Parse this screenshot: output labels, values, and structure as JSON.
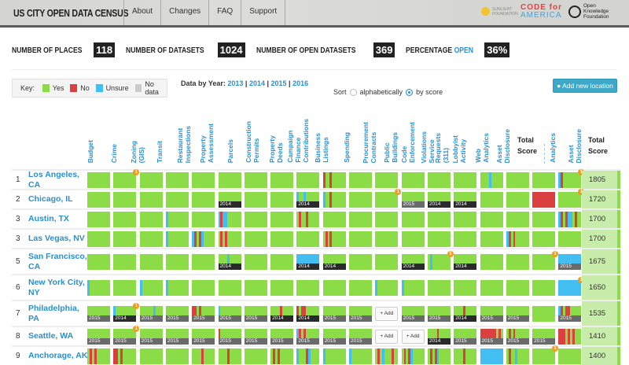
{
  "header": {
    "title": "US CITY OPEN DATA CENSUS",
    "nav": [
      "About",
      "Changes",
      "FAQ",
      "Support"
    ],
    "logos": {
      "sunlight": "SUNLIGHT FOUNDATION",
      "cfa_top": "CODE for",
      "cfa_bottom": "AMERICA",
      "okf": "Open Knowledge Foundation"
    }
  },
  "stats": [
    {
      "label": "NUMBER OF PLACES",
      "value": "118"
    },
    {
      "label": "NUMBER OF DATASETS",
      "value": "1024"
    },
    {
      "label": "NUMBER OF OPEN DATASETS",
      "value": "369"
    },
    {
      "label": "PERCENTAGE",
      "highlight": "OPEN",
      "value": "36%"
    }
  ],
  "key": {
    "label": "Key:",
    "items": [
      {
        "label": "Yes",
        "color": "#8cdc48"
      },
      {
        "label": "No",
        "color": "#d9403f"
      },
      {
        "label": "Unsure",
        "color": "#43bef0"
      },
      {
        "label": "No data",
        "color": "#cccccc"
      }
    ]
  },
  "years": {
    "label": "Data by Year:",
    "items": [
      "2013",
      "2014",
      "2015",
      "2016"
    ]
  },
  "sort": {
    "label": "Sort",
    "options": [
      "alphabetically",
      "by score"
    ],
    "selected": "by score"
  },
  "add_location": "Add new location",
  "columns": [
    "Budget",
    "Crime",
    "Zoning\n(GIS)",
    "Transit",
    "Restaurant\nInspections",
    "Property\nAssessment",
    "Parcels",
    "Construction\nPermits",
    "Property\nDeeds",
    "Campaign\nFinance\nContributions",
    "Business\nListings",
    "Spending",
    "Procurement\nContracts",
    "Public\nBuildings",
    "Code\nEnforcement",
    "Violations\nService",
    "Requests\n(311)",
    "Lobbyist\nActivity",
    "Web\nAnalytics",
    "Asset\nDisclosure",
    "Total\nScore",
    "Analytics",
    "Asset\nDisclosure",
    "Total\nScore"
  ],
  "colors": {
    "g": "#8cdc48",
    "r": "#d9403f",
    "b": "#43bef0",
    "y2014": "#2a2a2a",
    "y2015": "#6a6a6a"
  },
  "add_label": "+ Add",
  "rows": [
    {
      "rank": "1",
      "name": "Los Angeles, CA",
      "score": "1805",
      "cells": [
        "g",
        {
          "b": "1"
        },
        "g",
        "g",
        "g",
        "g",
        "g",
        "g",
        "g",
        "rggrgggggg",
        "g",
        "g",
        "g",
        "g",
        "g",
        "ggggbggggg",
        "g",
        "g",
        {
          "p": "brgggggggg",
          "b": "1"
        }
      ]
    },
    {
      "rank": "2",
      "name": "Chicago, IL",
      "score": "1720",
      "cells": [
        "g",
        "g",
        "g",
        "g",
        "g",
        {
          "y": "2014"
        },
        "g",
        "g",
        {
          "p": "bggbgggggg",
          "y": "2014"
        },
        "bggrgggggg",
        "g",
        {
          "b": "1"
        },
        {
          "y": "2015"
        },
        {
          "y": "2014"
        },
        {
          "y": "2014"
        },
        "g",
        "g",
        "r",
        {
          "b": "1"
        }
      ]
    },
    {
      "rank": "3",
      "name": "Austin, TX",
      "score": "1700",
      "cells": [
        "g",
        "g",
        "g",
        "bggggggggg",
        "g",
        "brbbgggggg",
        "g",
        "g",
        "grggrggggg",
        "g",
        "g",
        "g",
        "g",
        "g",
        "g",
        "g",
        "g",
        "g",
        "brgrbbgrgg"
      ]
    },
    {
      "rank": "3",
      "name": "Las Vegas, NV",
      "score": "1700",
      "cells": [
        "g",
        "g",
        "g",
        "bggggggggg",
        "brgrbggggg",
        "grgrgggggg",
        "g",
        "g",
        "g",
        "grgrgggggg",
        "g",
        "g",
        "g",
        "g",
        "g",
        "g",
        "brgrgggggg",
        "g",
        "g"
      ]
    },
    {
      "rank": "5",
      "name": "San Francisco, CA",
      "score": "1675",
      "cells": [
        "g",
        "g",
        "g",
        "g",
        "g",
        {
          "p": "ggggbggggg",
          "y": "2014"
        },
        "g",
        "g",
        {
          "p": "b",
          "y": "2014"
        },
        {
          "y": "2014"
        },
        "g",
        "g",
        {
          "y": "2014"
        },
        {
          "p": "gbgggggggg",
          "b": "1"
        },
        {
          "y": "2014"
        },
        "g",
        "g",
        {
          "b": "1"
        },
        {
          "p": "b",
          "y": "2015"
        }
      ]
    },
    {
      "rank": "6",
      "name": "New York City, NY",
      "score": "1650",
      "cells": [
        "bggggggggg",
        "g",
        "bggggggggg",
        "bggggggggg",
        "g",
        "g",
        "g",
        "g",
        "g",
        "g",
        "g",
        "bggggggggg",
        "bggggggggg",
        "g",
        "g",
        "g",
        "g",
        "g",
        {
          "p": "b",
          "b": "1"
        }
      ]
    },
    {
      "rank": "7",
      "name": "Philadelphia, PA",
      "score": "1535",
      "cells": [
        {
          "y": "2015"
        },
        {
          "p": "bggggggggg",
          "y": "2014",
          "b": "1"
        },
        {
          "p": "ggggggbggg",
          "y": "2015"
        },
        {
          "y": "2015"
        },
        {
          "p": "rrgrgggggg",
          "y": "2015"
        },
        {
          "p": "bggggggggg",
          "y": "2015"
        },
        {
          "y": "2015"
        },
        {
          "p": "ggggrggggg",
          "y": "2014"
        },
        {
          "p": "rgrrgggggg",
          "y": "2014"
        },
        {
          "y": "2015"
        },
        {
          "y": "2015"
        },
        "add",
        {
          "y": "2015"
        },
        {
          "y": "2015"
        },
        {
          "p": "ggggrggggg",
          "y": "2014"
        },
        {
          "y": "2015"
        },
        {
          "y": "2015"
        },
        "g",
        {
          "p": "brgrrggggg",
          "y": "2015"
        }
      ]
    },
    {
      "rank": "8",
      "name": "Seattle, WA",
      "score": "1410",
      "cells": [
        {
          "y": "2015"
        },
        {
          "y": "2015",
          "b": "1"
        },
        {
          "y": "2015"
        },
        {
          "y": "2015"
        },
        {
          "y": "2015"
        },
        {
          "p": "rggggggggg",
          "y": "2015"
        },
        {
          "y": "2015"
        },
        {
          "y": "2015"
        },
        {
          "p": "brgrgggggg",
          "y": "2015"
        },
        {
          "y": "2015"
        },
        {
          "y": "2015"
        },
        "add",
        "add",
        {
          "p": "ggggrggggg",
          "y": "2014"
        },
        {
          "y": "2015"
        },
        {
          "p": "rrrrrrrgrg",
          "y": "2015"
        },
        {
          "p": "grgrgggggg",
          "y": "2015"
        },
        {
          "y": "2015"
        },
        "rrrgrgrggg"
      ]
    },
    {
      "rank": "9",
      "name": "Anchorage, AK",
      "score": "1400",
      "cells": [
        "grgrgggggg",
        "rrgrgggggg",
        "g",
        "g",
        "ggggrggggg",
        "ggggrggggg",
        "g",
        "grgrgggggg",
        "bgggrbgggg",
        "bggggggggg",
        "bggggggggg",
        "grgbgggrgg",
        "grgrbggggg",
        "grgrbggggg",
        "ggggrggggg",
        "b",
        "grggbggggg",
        {
          "b": "1"
        },
        "g"
      ]
    }
  ]
}
